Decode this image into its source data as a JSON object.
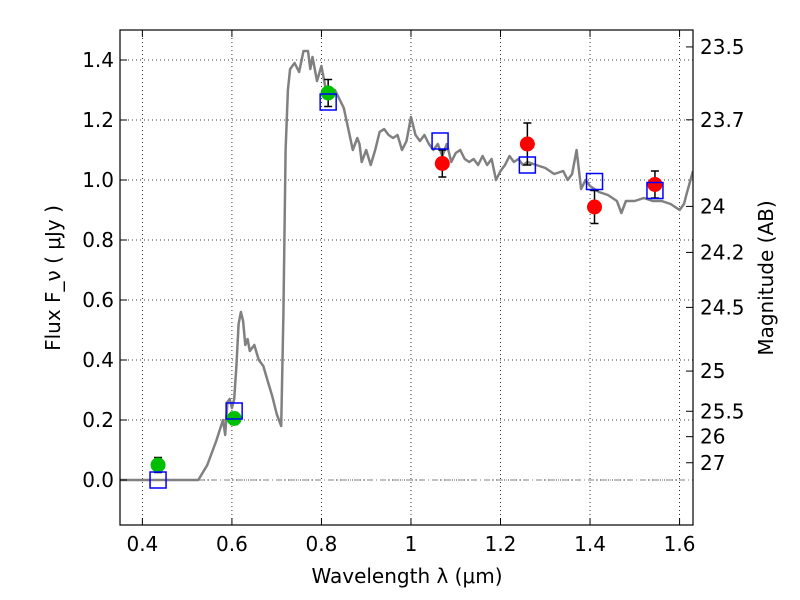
{
  "chart_data": {
    "type": "scatter",
    "xlabel": "Wavelength  λ (μm)",
    "ylabel": "Flux  F_ν  ( μJy )",
    "ylabel_right": "Magnitude (AB)",
    "xlim": [
      0.35,
      1.63
    ],
    "ylim": [
      -0.15,
      1.5
    ],
    "grid": true,
    "x_ticks": [
      {
        "value": 0.4,
        "label": "0.4"
      },
      {
        "value": 0.6,
        "label": "0.6"
      },
      {
        "value": 0.8,
        "label": "0.8"
      },
      {
        "value": 1.0,
        "label": "1"
      },
      {
        "value": 1.2,
        "label": "1.2"
      },
      {
        "value": 1.4,
        "label": "1.4"
      },
      {
        "value": 1.6,
        "label": "1.6"
      }
    ],
    "y_ticks": [
      {
        "value": 0.0,
        "label": "0.0"
      },
      {
        "value": 0.2,
        "label": "0.2"
      },
      {
        "value": 0.4,
        "label": "0.4"
      },
      {
        "value": 0.6,
        "label": "0.6"
      },
      {
        "value": 0.8,
        "label": "0.8"
      },
      {
        "value": 1.0,
        "label": "1.0"
      },
      {
        "value": 1.2,
        "label": "1.2"
      },
      {
        "value": 1.4,
        "label": "1.4"
      }
    ],
    "right_ticks": [
      {
        "flux": 1.4436,
        "label": "23.5"
      },
      {
        "flux": 1.2006,
        "label": "23.7"
      },
      {
        "flux": 0.912,
        "label": "24"
      },
      {
        "flux": 0.7586,
        "label": "24.2"
      },
      {
        "flux": 0.5754,
        "label": "24.5"
      },
      {
        "flux": 0.3631,
        "label": "25"
      },
      {
        "flux": 0.2291,
        "label": "25.5"
      },
      {
        "flux": 0.1445,
        "label": "26"
      },
      {
        "flux": 0.0575,
        "label": "27"
      }
    ],
    "series": [
      {
        "kind": "line",
        "color": "#808080",
        "points": [
          [
            0.35,
            0.0
          ],
          [
            0.43,
            0.0
          ],
          [
            0.525,
            0.0
          ],
          [
            0.545,
            0.05
          ],
          [
            0.565,
            0.13
          ],
          [
            0.58,
            0.2
          ],
          [
            0.585,
            0.15
          ],
          [
            0.59,
            0.26
          ],
          [
            0.595,
            0.27
          ],
          [
            0.6,
            0.24
          ],
          [
            0.605,
            0.27
          ],
          [
            0.61,
            0.38
          ],
          [
            0.615,
            0.52
          ],
          [
            0.62,
            0.56
          ],
          [
            0.625,
            0.53
          ],
          [
            0.63,
            0.45
          ],
          [
            0.635,
            0.47
          ],
          [
            0.64,
            0.43
          ],
          [
            0.65,
            0.45
          ],
          [
            0.66,
            0.4
          ],
          [
            0.67,
            0.38
          ],
          [
            0.68,
            0.33
          ],
          [
            0.69,
            0.28
          ],
          [
            0.7,
            0.22
          ],
          [
            0.71,
            0.18
          ],
          [
            0.715,
            0.55
          ],
          [
            0.72,
            1.1
          ],
          [
            0.725,
            1.3
          ],
          [
            0.73,
            1.37
          ],
          [
            0.74,
            1.39
          ],
          [
            0.75,
            1.36
          ],
          [
            0.76,
            1.43
          ],
          [
            0.77,
            1.43
          ],
          [
            0.775,
            1.37
          ],
          [
            0.78,
            1.41
          ],
          [
            0.79,
            1.33
          ],
          [
            0.8,
            1.38
          ],
          [
            0.81,
            1.3
          ],
          [
            0.82,
            1.27
          ],
          [
            0.83,
            1.3
          ],
          [
            0.84,
            1.27
          ],
          [
            0.85,
            1.24
          ],
          [
            0.86,
            1.17
          ],
          [
            0.87,
            1.1
          ],
          [
            0.88,
            1.14
          ],
          [
            0.885,
            1.12
          ],
          [
            0.89,
            1.06
          ],
          [
            0.9,
            1.1
          ],
          [
            0.91,
            1.05
          ],
          [
            0.92,
            1.1
          ],
          [
            0.93,
            1.16
          ],
          [
            0.94,
            1.17
          ],
          [
            0.95,
            1.15
          ],
          [
            0.96,
            1.14
          ],
          [
            0.97,
            1.15
          ],
          [
            0.98,
            1.1
          ],
          [
            0.99,
            1.13
          ],
          [
            1.0,
            1.21
          ],
          [
            1.01,
            1.15
          ],
          [
            1.02,
            1.13
          ],
          [
            1.03,
            1.15
          ],
          [
            1.04,
            1.12
          ],
          [
            1.05,
            1.1
          ],
          [
            1.06,
            1.12
          ],
          [
            1.07,
            1.08
          ],
          [
            1.08,
            1.12
          ],
          [
            1.09,
            1.06
          ],
          [
            1.1,
            1.09
          ],
          [
            1.11,
            1.1
          ],
          [
            1.12,
            1.07
          ],
          [
            1.13,
            1.06
          ],
          [
            1.14,
            1.07
          ],
          [
            1.15,
            1.05
          ],
          [
            1.16,
            1.08
          ],
          [
            1.17,
            1.05
          ],
          [
            1.18,
            1.07
          ],
          [
            1.19,
            1.0
          ],
          [
            1.2,
            1.03
          ],
          [
            1.21,
            1.05
          ],
          [
            1.22,
            1.08
          ],
          [
            1.23,
            1.06
          ],
          [
            1.24,
            1.07
          ],
          [
            1.25,
            1.05
          ],
          [
            1.26,
            1.06
          ],
          [
            1.28,
            1.05
          ],
          [
            1.3,
            1.04
          ],
          [
            1.32,
            1.02
          ],
          [
            1.34,
            1.03
          ],
          [
            1.35,
            1.0
          ],
          [
            1.36,
            1.02
          ],
          [
            1.37,
            1.1
          ],
          [
            1.38,
            0.97
          ],
          [
            1.39,
            1.0
          ],
          [
            1.4,
            0.98
          ],
          [
            1.41,
            0.97
          ],
          [
            1.42,
            0.96
          ],
          [
            1.44,
            0.95
          ],
          [
            1.46,
            0.93
          ],
          [
            1.47,
            0.89
          ],
          [
            1.48,
            0.93
          ],
          [
            1.5,
            0.93
          ],
          [
            1.52,
            0.94
          ],
          [
            1.54,
            0.93
          ],
          [
            1.56,
            0.93
          ],
          [
            1.58,
            0.92
          ],
          [
            1.6,
            0.9
          ],
          [
            1.61,
            0.92
          ],
          [
            1.615,
            0.95
          ],
          [
            1.63,
            1.03
          ]
        ]
      },
      {
        "kind": "scatter",
        "marker": "circle",
        "color": "#00bf00",
        "points": [
          {
            "x": 0.435,
            "y": 0.05,
            "err": 0.025
          },
          {
            "x": 0.605,
            "y": 0.205,
            "err": 0.02
          },
          {
            "x": 0.815,
            "y": 1.29,
            "err": 0.045
          }
        ]
      },
      {
        "kind": "scatter",
        "marker": "circle",
        "color": "#ff0000",
        "points": [
          {
            "x": 1.07,
            "y": 1.055,
            "err": 0.045
          },
          {
            "x": 1.26,
            "y": 1.12,
            "err": 0.07
          },
          {
            "x": 1.41,
            "y": 0.91,
            "err": 0.055
          },
          {
            "x": 1.545,
            "y": 0.985,
            "err": 0.045
          }
        ]
      },
      {
        "kind": "scatter",
        "marker": "open-square",
        "color": "#0000ff",
        "points": [
          {
            "x": 0.435,
            "y": 0.0
          },
          {
            "x": 0.605,
            "y": 0.23
          },
          {
            "x": 0.815,
            "y": 1.26
          },
          {
            "x": 1.065,
            "y": 1.13
          },
          {
            "x": 1.26,
            "y": 1.05
          },
          {
            "x": 1.41,
            "y": 0.995
          },
          {
            "x": 1.545,
            "y": 0.965
          }
        ]
      }
    ]
  }
}
